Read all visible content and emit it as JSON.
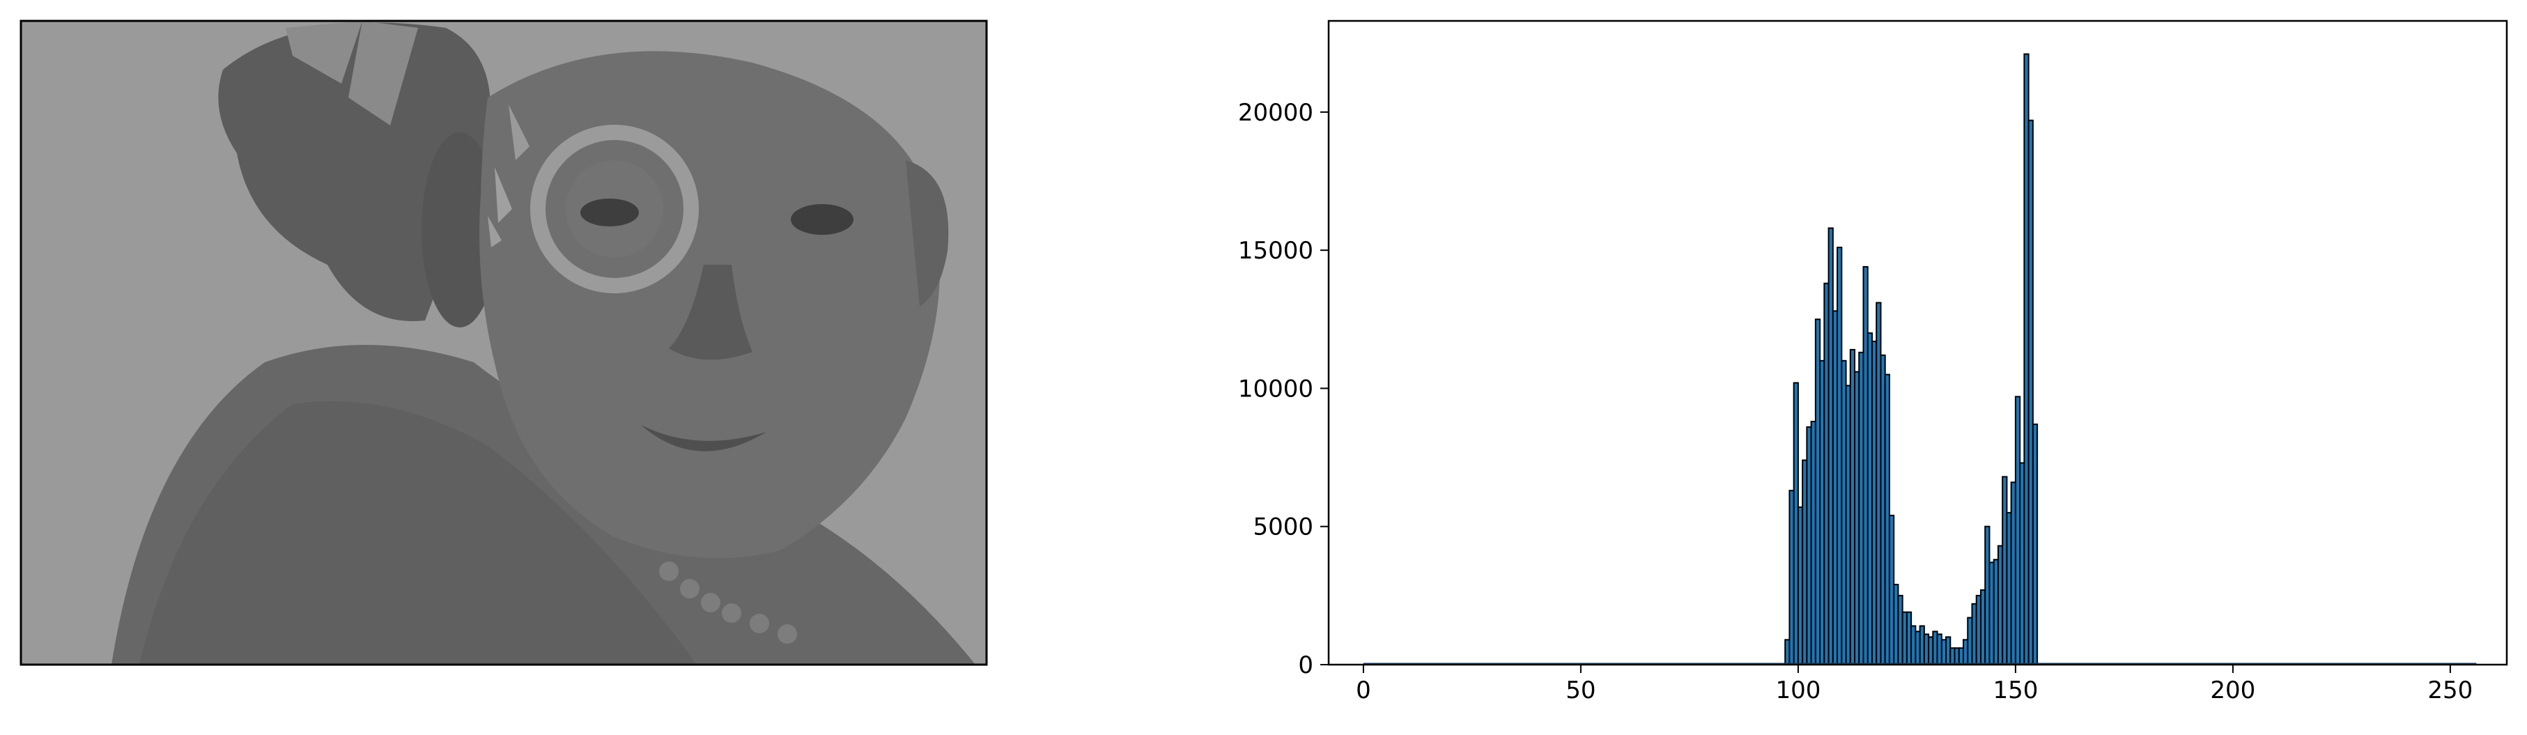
{
  "image_panel": {
    "description_icon": "grayscale-portrait-photo-icon",
    "colors": {
      "background": "#9a9a9a",
      "subject": "#6e6e6e",
      "dark": "#4a4a4a"
    }
  },
  "chart_data": {
    "type": "bar",
    "title": "",
    "xlabel": "",
    "ylabel": "",
    "xlim": [
      -8,
      263
    ],
    "ylim": [
      0,
      23300
    ],
    "xticks": [
      0,
      50,
      100,
      150,
      200,
      250
    ],
    "yticks": [
      0,
      5000,
      10000,
      15000,
      20000
    ],
    "grid": false,
    "bar_color": "#1f77b4",
    "edge_color": "#000000",
    "x": [
      97,
      98,
      99,
      100,
      101,
      102,
      103,
      104,
      105,
      106,
      107,
      108,
      109,
      110,
      111,
      112,
      113,
      114,
      115,
      116,
      117,
      118,
      119,
      120,
      121,
      122,
      123,
      124,
      125,
      126,
      127,
      128,
      129,
      130,
      131,
      132,
      133,
      134,
      135,
      136,
      137,
      138,
      139,
      140,
      141,
      142,
      143,
      144,
      145,
      146,
      147,
      148,
      149,
      150,
      151,
      152,
      153,
      154,
      155,
      156,
      157
    ],
    "values": [
      900,
      6300,
      10200,
      5700,
      7400,
      8600,
      8800,
      12500,
      11000,
      13800,
      15800,
      12800,
      15100,
      11000,
      10100,
      11400,
      10600,
      11300,
      14400,
      12000,
      11700,
      13100,
      11200,
      10500,
      5400,
      2900,
      2500,
      1900,
      1900,
      1400,
      1200,
      1400,
      1100,
      1000,
      1200,
      1100,
      900,
      1000,
      600,
      600,
      600,
      900,
      1700,
      2200,
      2500,
      2700,
      5000,
      3700,
      3800,
      4300,
      6800,
      5500,
      6600,
      9700,
      7300,
      22100,
      19700,
      8700,
      0,
      0,
      0
    ]
  }
}
